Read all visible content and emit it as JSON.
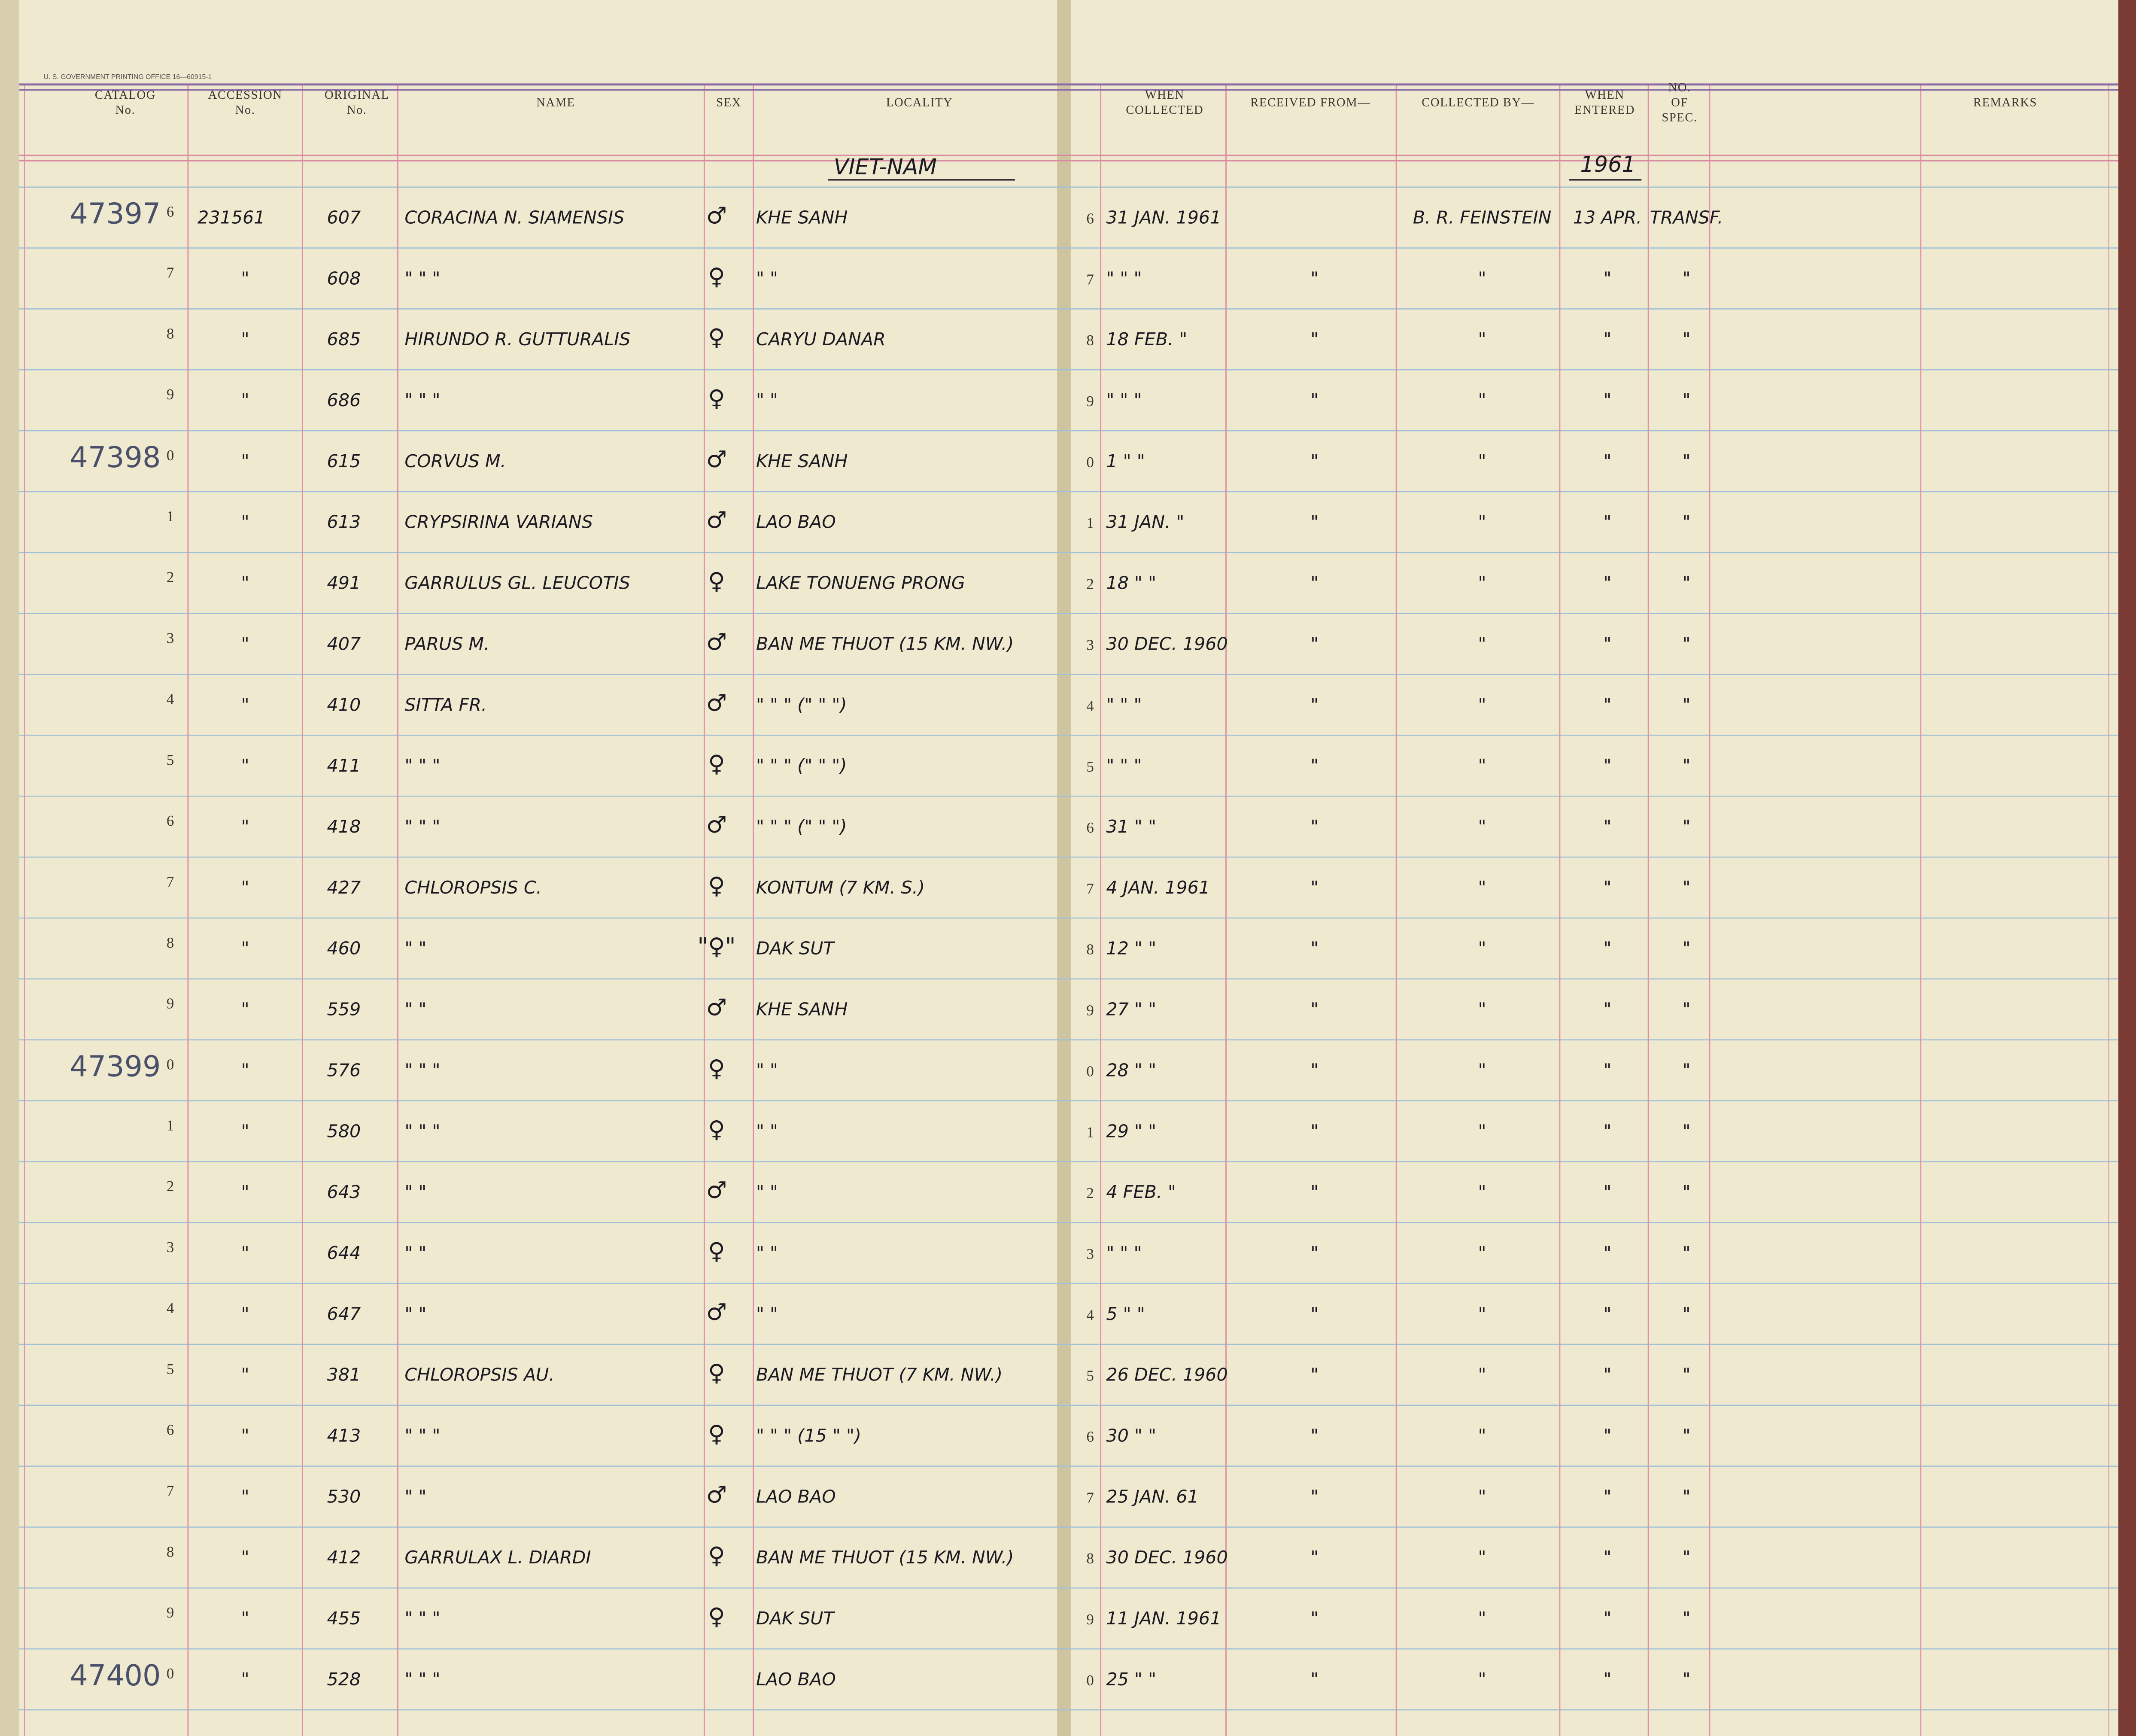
{
  "imprint": "U. S. GOVERNMENT PRINTING OFFICE 16—60915-1",
  "headers": [
    [
      "CATALOG",
      "No."
    ],
    [
      "ACCESSION",
      "No."
    ],
    [
      "ORIGINAL",
      "No."
    ],
    [
      "NAME"
    ],
    [
      "SEX"
    ],
    [
      "LOCALITY"
    ],
    [
      "WHEN",
      "COLLECTED"
    ],
    [
      "RECEIVED FROM—"
    ],
    [
      "COLLECTED BY—"
    ],
    [
      "WHEN",
      "ENTERED"
    ],
    [
      "NO.",
      "OF",
      "SPEC."
    ],
    [
      "REMARKS"
    ]
  ],
  "country": "VIET-NAM",
  "year": "1961",
  "rows": [
    {
      "prefix": "47397",
      "digit": "6",
      "accession": "231561",
      "original": "607",
      "name": "CORACINA N. SIAMENSIS",
      "sex": "♂",
      "locality": "KHE SANH",
      "rdigit": "6",
      "collected": "31 JAN. 1961",
      "collector": "B. R. FEINSTEIN",
      "entered": "13 APR.",
      "spec": "TRANSF."
    },
    {
      "digit": "7",
      "accession": "\"",
      "original": "608",
      "name": "\"      \"      \"",
      "sex": "♀",
      "locality": "\"    \"",
      "rdigit": "7",
      "collected": "\"  \"  \"",
      "received": "\"",
      "collector": "\"",
      "entered": "\"",
      "spec": "\""
    },
    {
      "digit": "8",
      "accession": "\"",
      "original": "685",
      "name": "HIRUNDO R. GUTTURALIS",
      "sex": "♀",
      "locality": "CARYU DANAR",
      "rdigit": "8",
      "collected": "18 FEB. \"",
      "received": "\"",
      "collector": "\"",
      "entered": "\"",
      "spec": "\""
    },
    {
      "digit": "9",
      "accession": "\"",
      "original": "686",
      "name": "\"      \"      \"",
      "sex": "♀",
      "locality": "\"      \"",
      "rdigit": "9",
      "collected": "\"  \"  \"",
      "received": "\"",
      "collector": "\"",
      "entered": "\"",
      "spec": "\""
    },
    {
      "prefix": "47398",
      "digit": "0",
      "accession": "\"",
      "original": "615",
      "name": "CORVUS M.",
      "sex": "♂",
      "locality": "KHE SANH",
      "rdigit": "0",
      "collected": "1  \"  \"",
      "received": "\"",
      "collector": "\"",
      "entered": "\"",
      "spec": "\""
    },
    {
      "digit": "1",
      "accession": "\"",
      "original": "613",
      "name": "CRYPSIRINA VARIANS",
      "sex": "♂",
      "locality": "LAO BAO",
      "rdigit": "1",
      "collected": "31 JAN. \"",
      "received": "\"",
      "collector": "\"",
      "entered": "\"",
      "spec": "\""
    },
    {
      "digit": "2",
      "accession": "\"",
      "original": "491",
      "name": "GARRULUS GL. LEUCOTIS",
      "sex": "♀",
      "locality": "LAKE TONUENG PRONG",
      "rdigit": "2",
      "collected": "18  \"  \"",
      "received": "\"",
      "collector": "\"",
      "entered": "\"",
      "spec": "\""
    },
    {
      "digit": "3",
      "accession": "\"",
      "original": "407",
      "name": "PARUS M.",
      "sex": "♂",
      "locality": "BAN ME THUOT (15 KM. NW.)",
      "rdigit": "3",
      "collected": "30 DEC. 1960",
      "received": "\"",
      "collector": "\"",
      "entered": "\"",
      "spec": "\""
    },
    {
      "digit": "4",
      "accession": "\"",
      "original": "410",
      "name": "SITTA FR.",
      "sex": "♂",
      "locality": "\"   \"   \"  (\"  \"  \")",
      "rdigit": "4",
      "collected": "\"  \"  \"",
      "received": "\"",
      "collector": "\"",
      "entered": "\"",
      "spec": "\""
    },
    {
      "digit": "5",
      "accession": "\"",
      "original": "411",
      "name": "\"      \"      \"",
      "sex": "♀",
      "locality": "\"   \"   \"  (\"  \"  \")",
      "rdigit": "5",
      "collected": "\"  \"  \"",
      "received": "\"",
      "collector": "\"",
      "entered": "\"",
      "spec": "\""
    },
    {
      "digit": "6",
      "accession": "\"",
      "original": "418",
      "name": "\"      \"      \"",
      "sex": "♂",
      "locality": "\"   \"   \"  (\"  \"  \")",
      "rdigit": "6",
      "collected": "31  \"  \"",
      "received": "\"",
      "collector": "\"",
      "entered": "\"",
      "spec": "\""
    },
    {
      "digit": "7",
      "accession": "\"",
      "original": "427",
      "name": "CHLOROPSIS C.",
      "sex": "♀",
      "locality": "KONTUM (7 KM. S.)",
      "rdigit": "7",
      "collected": "4 JAN. 1961",
      "received": "\"",
      "collector": "\"",
      "entered": "\"",
      "spec": "\""
    },
    {
      "digit": "8",
      "accession": "\"",
      "original": "460",
      "name": "\"      \"",
      "sex": "\"♀\"",
      "locality": "DAK SUT",
      "rdigit": "8",
      "collected": "12  \"  \"",
      "received": "\"",
      "collector": "\"",
      "entered": "\"",
      "spec": "\""
    },
    {
      "digit": "9",
      "accession": "\"",
      "original": "559",
      "name": "\"      \"",
      "sex": "♂",
      "locality": "KHE SANH",
      "rdigit": "9",
      "collected": "27  \"  \"",
      "received": "\"",
      "collector": "\"",
      "entered": "\"",
      "spec": "\""
    },
    {
      "prefix": "47399",
      "digit": "0",
      "accession": "\"",
      "original": "576",
      "name": "\"      \"      \"",
      "sex": "♀",
      "locality": "\"    \"",
      "rdigit": "0",
      "collected": "28  \"  \"",
      "received": "\"",
      "collector": "\"",
      "entered": "\"",
      "spec": "\""
    },
    {
      "digit": "1",
      "accession": "\"",
      "original": "580",
      "name": "\"      \"      \"",
      "sex": "♀",
      "locality": "\"    \"",
      "rdigit": "1",
      "collected": "29  \"  \"",
      "received": "\"",
      "collector": "\"",
      "entered": "\"",
      "spec": "\""
    },
    {
      "digit": "2",
      "accession": "\"",
      "original": "643",
      "name": "\"      \"",
      "sex": "♂",
      "locality": "\"    \"",
      "rdigit": "2",
      "collected": "4 FEB. \"",
      "received": "\"",
      "collector": "\"",
      "entered": "\"",
      "spec": "\""
    },
    {
      "digit": "3",
      "accession": "\"",
      "original": "644",
      "name": "\"      \"",
      "sex": "♀",
      "locality": "\"    \"",
      "rdigit": "3",
      "collected": "\"  \"  \"",
      "received": "\"",
      "collector": "\"",
      "entered": "\"",
      "spec": "\""
    },
    {
      "digit": "4",
      "accession": "\"",
      "original": "647",
      "name": "\"      \"",
      "sex": "♂",
      "locality": "\"    \"",
      "rdigit": "4",
      "collected": "5  \"  \"",
      "received": "\"",
      "collector": "\"",
      "entered": "\"",
      "spec": "\""
    },
    {
      "digit": "5",
      "accession": "\"",
      "original": "381",
      "name": "CHLOROPSIS AU.",
      "sex": "♀",
      "locality": "BAN ME THUOT (7 KM. NW.)",
      "rdigit": "5",
      "collected": "26 DEC. 1960",
      "received": "\"",
      "collector": "\"",
      "entered": "\"",
      "spec": "\""
    },
    {
      "digit": "6",
      "accession": "\"",
      "original": "413",
      "name": "\"      \"      \"",
      "sex": "♀",
      "locality": "\"   \"   \"  (15  \"  \")",
      "rdigit": "6",
      "collected": "30  \"  \"",
      "received": "\"",
      "collector": "\"",
      "entered": "\"",
      "spec": "\""
    },
    {
      "digit": "7",
      "accession": "\"",
      "original": "530",
      "name": "\"      \"",
      "sex": "♂",
      "locality": "LAO BAO",
      "rdigit": "7",
      "collected": "25 JAN. 61",
      "received": "\"",
      "collector": "\"",
      "entered": "\"",
      "spec": "\""
    },
    {
      "digit": "8",
      "accession": "\"",
      "original": "412",
      "name": "GARRULAX L. DIARDI",
      "sex": "♀",
      "locality": "BAN ME THUOT (15 KM. NW.)",
      "rdigit": "8",
      "collected": "30 DEC. 1960",
      "received": "\"",
      "collector": "\"",
      "entered": "\"",
      "spec": "\""
    },
    {
      "digit": "9",
      "accession": "\"",
      "original": "455",
      "name": "\"      \"      \"",
      "sex": "♀",
      "locality": "DAK SUT",
      "rdigit": "9",
      "collected": "11 JAN. 1961",
      "received": "\"",
      "collector": "\"",
      "entered": "\"",
      "spec": "\""
    },
    {
      "prefix": "47400",
      "digit": "0",
      "accession": "\"",
      "original": "528",
      "name": "\"      \"      \"",
      "locality": "LAO BAO",
      "rdigit": "0",
      "collected": "25  \"  \"",
      "received": "\"",
      "collector": "\"",
      "entered": "\"",
      "spec": "\""
    }
  ]
}
